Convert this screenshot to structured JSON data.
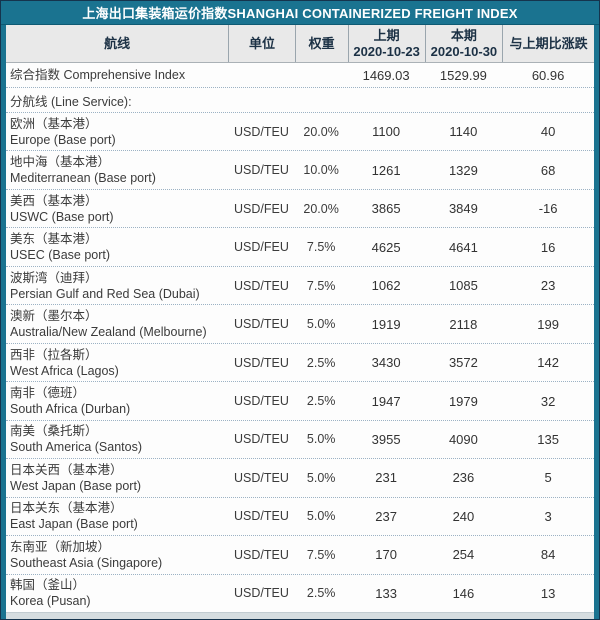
{
  "title": "上海出口集装箱运价指数SHANGHAI CONTAINERIZED FREIGHT INDEX",
  "colors": {
    "teal": "#1a7390",
    "header_bg": "#e9e9e9",
    "header_text": "#1c3145",
    "dotted_line": "#9cb2c4",
    "body_text": "#3b3b3b",
    "bottom_strip": "#d6dde0"
  },
  "header": {
    "route": "航线",
    "unit": "单位",
    "weight": "权重",
    "prev_label": "上期",
    "prev_date": "2020-10-23",
    "curr_label": "本期",
    "curr_date": "2020-10-30",
    "change": "与上期比涨跌"
  },
  "comprehensive": {
    "name": "综合指数 Comprehensive Index",
    "prev": "1469.03",
    "curr": "1529.99",
    "change": "60.96"
  },
  "section_label": "分航线 (Line Service):",
  "routes": [
    {
      "zh": "欧洲（基本港）",
      "en": "Europe (Base port)",
      "unit": "USD/TEU",
      "weight": "20.0%",
      "prev": "1100",
      "curr": "1140",
      "change": "40"
    },
    {
      "zh": "地中海（基本港）",
      "en": "Mediterranean (Base port)",
      "unit": "USD/TEU",
      "weight": "10.0%",
      "prev": "1261",
      "curr": "1329",
      "change": "68"
    },
    {
      "zh": "美西（基本港）",
      "en": "USWC (Base port)",
      "unit": "USD/FEU",
      "weight": "20.0%",
      "prev": "3865",
      "curr": "3849",
      "change": "-16"
    },
    {
      "zh": "美东（基本港）",
      "en": "USEC (Base port)",
      "unit": "USD/FEU",
      "weight": "7.5%",
      "prev": "4625",
      "curr": "4641",
      "change": "16"
    },
    {
      "zh": "波斯湾（迪拜）",
      "en": "Persian Gulf and Red Sea (Dubai)",
      "unit": "USD/TEU",
      "weight": "7.5%",
      "prev": "1062",
      "curr": "1085",
      "change": "23"
    },
    {
      "zh": "澳新（墨尔本）",
      "en": "Australia/New Zealand (Melbourne)",
      "unit": "USD/TEU",
      "weight": "5.0%",
      "prev": "1919",
      "curr": "2118",
      "change": "199"
    },
    {
      "zh": "西非（拉各斯）",
      "en": "West Africa (Lagos)",
      "unit": "USD/TEU",
      "weight": "2.5%",
      "prev": "3430",
      "curr": "3572",
      "change": "142"
    },
    {
      "zh": "南非（德班）",
      "en": "South Africa (Durban)",
      "unit": "USD/TEU",
      "weight": "2.5%",
      "prev": "1947",
      "curr": "1979",
      "change": "32"
    },
    {
      "zh": "南美（桑托斯）",
      "en": "South America (Santos)",
      "unit": "USD/TEU",
      "weight": "5.0%",
      "prev": "3955",
      "curr": "4090",
      "change": "135"
    },
    {
      "zh": "日本关西（基本港）",
      "en": "West Japan (Base port)",
      "unit": "USD/TEU",
      "weight": "5.0%",
      "prev": "231",
      "curr": "236",
      "change": "5"
    },
    {
      "zh": "日本关东（基本港）",
      "en": "East Japan (Base port)",
      "unit": "USD/TEU",
      "weight": "5.0%",
      "prev": "237",
      "curr": "240",
      "change": "3"
    },
    {
      "zh": "东南亚（新加坡）",
      "en": "Southeast Asia (Singapore)",
      "unit": "USD/TEU",
      "weight": "7.5%",
      "prev": "170",
      "curr": "254",
      "change": "84"
    },
    {
      "zh": "韩国（釜山）",
      "en": "Korea (Pusan)",
      "unit": "USD/TEU",
      "weight": "2.5%",
      "prev": "133",
      "curr": "146",
      "change": "13"
    }
  ]
}
